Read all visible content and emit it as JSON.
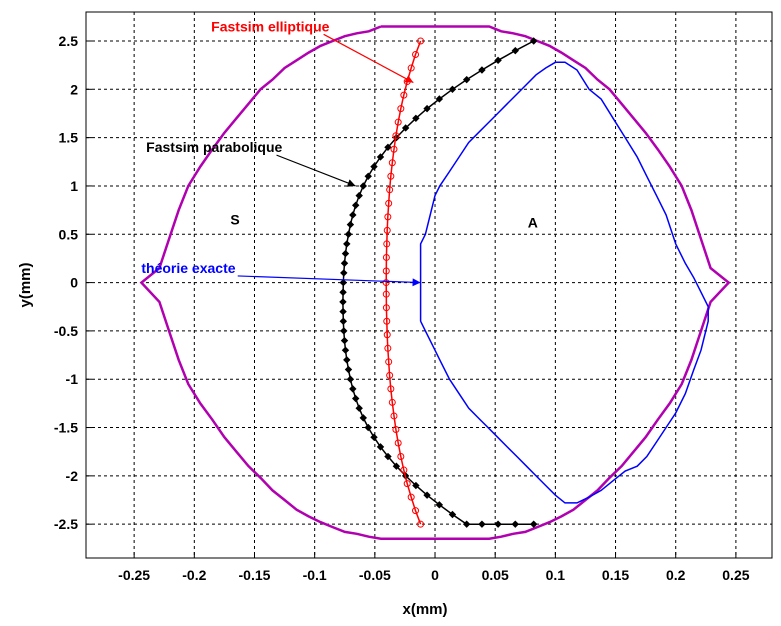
{
  "chart_data": {
    "type": "line",
    "xlabel": "x(mm)",
    "ylabel": "y(mm)",
    "xlim": [
      -0.29,
      0.28
    ],
    "ylim": [
      -2.85,
      2.8
    ],
    "xticks": [
      -0.25,
      -0.2,
      -0.15,
      -0.1,
      -0.05,
      0,
      0.05,
      0.1,
      0.15,
      0.2,
      0.25
    ],
    "xtick_labels": [
      "-0.25",
      "-0.2",
      "-0.15",
      "-0.1",
      "-0.05",
      "0",
      "0.05",
      "0.1",
      "0.15",
      "0.2",
      "0.25"
    ],
    "yticks": [
      -2.5,
      -2,
      -1.5,
      -1,
      -0.5,
      0,
      0.5,
      1,
      1.5,
      2,
      2.5
    ],
    "ytick_labels": [
      "-2.5",
      "-2",
      "-1.5",
      "-1",
      "-0.5",
      "0",
      "0.5",
      "1",
      "1.5",
      "2",
      "2.5"
    ],
    "grid": true,
    "annotations": [
      {
        "text": "Fastsim elliptique",
        "color": "#ff0000",
        "x": -0.186,
        "y": 2.6,
        "arrow_to": [
          -0.018,
          2.07
        ]
      },
      {
        "text": "Fastsim parabolique",
        "color": "#000000",
        "x": -0.24,
        "y": 1.35,
        "arrow_to": [
          -0.066,
          1.0
        ]
      },
      {
        "text": "théorie exacte",
        "color": "#0000ff",
        "x": -0.244,
        "y": 0.1,
        "arrow_to": [
          -0.012,
          0.0
        ]
      },
      {
        "text": "S",
        "color": "#000000",
        "x": -0.17,
        "y": 0.6
      },
      {
        "text": "A",
        "color": "#000000",
        "x": 0.077,
        "y": 0.57
      }
    ],
    "series": [
      {
        "color": "#b000b0",
        "x": [
          -0.045,
          0.045,
          0.055,
          0.065,
          0.075,
          0.085,
          0.095,
          0.105,
          0.115,
          0.125,
          0.135,
          0.145,
          0.155,
          0.165,
          0.175,
          0.185,
          0.195,
          0.205,
          0.213,
          0.221,
          0.229,
          0.244,
          0.244,
          0.229,
          0.221,
          0.213,
          0.205,
          0.195,
          0.185,
          0.175,
          0.165,
          0.155,
          0.145,
          0.135,
          0.125,
          0.115,
          0.105,
          0.095,
          0.085,
          0.075,
          0.065,
          0.055,
          0.045,
          -0.045,
          -0.055,
          -0.065,
          -0.075,
          -0.085,
          -0.095,
          -0.105,
          -0.115,
          -0.125,
          -0.135,
          -0.145,
          -0.155,
          -0.165,
          -0.175,
          -0.185,
          -0.195,
          -0.205,
          -0.213,
          -0.221,
          -0.229,
          -0.244,
          -0.244,
          -0.229,
          -0.221,
          -0.213,
          -0.205,
          -0.195,
          -0.185,
          -0.175,
          -0.165,
          -0.155,
          -0.145,
          -0.135,
          -0.125,
          -0.115,
          -0.105,
          -0.095,
          -0.085,
          -0.075,
          -0.065,
          -0.055,
          -0.045
        ],
        "y": [
          2.65,
          2.65,
          2.6,
          2.58,
          2.55,
          2.5,
          2.45,
          2.38,
          2.3,
          2.22,
          2.1,
          2.0,
          1.85,
          1.7,
          1.55,
          1.38,
          1.2,
          1.0,
          0.75,
          0.45,
          0.15,
          0.0,
          0.0,
          -0.2,
          -0.5,
          -0.8,
          -1.05,
          -1.25,
          -1.42,
          -1.6,
          -1.75,
          -1.9,
          -2.02,
          -2.15,
          -2.25,
          -2.35,
          -2.42,
          -2.48,
          -2.53,
          -2.58,
          -2.6,
          -2.63,
          -2.65,
          -2.65,
          -2.63,
          -2.6,
          -2.58,
          -2.53,
          -2.48,
          -2.42,
          -2.35,
          -2.25,
          -2.15,
          -2.02,
          -1.9,
          -1.75,
          -1.6,
          -1.42,
          -1.25,
          -1.05,
          -0.8,
          -0.5,
          -0.2,
          0.0,
          0.0,
          0.15,
          0.45,
          0.75,
          1.0,
          1.2,
          1.38,
          1.55,
          1.7,
          1.85,
          2.0,
          2.1,
          2.22,
          2.3,
          2.38,
          2.45,
          2.5,
          2.55,
          2.58,
          2.6,
          2.65
        ]
      },
      {
        "color": "#0000ff",
        "x": [
          -0.012,
          -0.012,
          -0.008,
          -0.004,
          0.0,
          0.004,
          0.012,
          0.02,
          0.028,
          0.036,
          0.044,
          0.052,
          0.06,
          0.068,
          0.076,
          0.084,
          0.092,
          0.1,
          0.108,
          0.118,
          0.128,
          0.138,
          0.148,
          0.158,
          0.168,
          0.176,
          0.184,
          0.192,
          0.2,
          0.208,
          0.215,
          0.221,
          0.227,
          0.227,
          0.221,
          0.215,
          0.208,
          0.2,
          0.192,
          0.184,
          0.176,
          0.168,
          0.158,
          0.148,
          0.138,
          0.128,
          0.118,
          0.108,
          0.1,
          0.092,
          0.084,
          0.076,
          0.068,
          0.06,
          0.052,
          0.044,
          0.036,
          0.028,
          0.02,
          0.012,
          0.004,
          0.0,
          -0.004,
          -0.008,
          -0.012,
          -0.012
        ],
        "y": [
          -0.4,
          0.4,
          0.5,
          0.7,
          0.9,
          1.0,
          1.15,
          1.3,
          1.45,
          1.55,
          1.65,
          1.75,
          1.85,
          1.95,
          2.05,
          2.15,
          2.22,
          2.28,
          2.28,
          2.2,
          2.0,
          1.9,
          1.7,
          1.5,
          1.3,
          1.1,
          0.9,
          0.7,
          0.4,
          0.2,
          0.05,
          -0.1,
          -0.25,
          -0.4,
          -0.7,
          -0.9,
          -1.15,
          -1.35,
          -1.5,
          -1.65,
          -1.8,
          -1.9,
          -1.95,
          -2.05,
          -2.15,
          -2.22,
          -2.28,
          -2.28,
          -2.2,
          -2.1,
          -2.0,
          -1.9,
          -1.8,
          -1.7,
          -1.6,
          -1.5,
          -1.4,
          -1.3,
          -1.15,
          -1.0,
          -0.8,
          -0.7,
          -0.6,
          -0.5,
          -0.4,
          -0.4
        ]
      },
      {
        "color": "#000000",
        "marker": "diamond",
        "x": [
          0.082,
          0.0667,
          0.0524,
          0.039,
          0.0263,
          0.0145,
          0.0036,
          -0.0066,
          -0.0159,
          -0.0244,
          -0.0321,
          -0.0391,
          -0.0453,
          -0.0507,
          -0.0555,
          -0.0596,
          -0.063,
          -0.0659,
          -0.0683,
          -0.0703,
          -0.0719,
          -0.0733,
          -0.0744,
          -0.0752,
          -0.0758,
          -0.0762,
          -0.0764,
          -0.0765,
          -0.0764,
          -0.0762,
          -0.0758,
          -0.0752,
          -0.0744,
          -0.0733,
          -0.0719,
          -0.0703,
          -0.0683,
          -0.0659,
          -0.063,
          -0.0596,
          -0.0555,
          -0.0507,
          -0.0453,
          -0.0391,
          -0.0321,
          -0.0244,
          -0.0159,
          -0.0066,
          0.0036,
          0.0145,
          0.0263,
          0.039,
          0.0524,
          0.0667,
          0.082
        ],
        "y": [
          2.5,
          2.4,
          2.3,
          2.2,
          2.1,
          2.0,
          1.9,
          1.8,
          1.7,
          1.6,
          1.5,
          1.4,
          1.3,
          1.2,
          1.1,
          1.0,
          0.9,
          0.8,
          0.7,
          0.6,
          0.5,
          0.4,
          0.3,
          0.2,
          0.1,
          0.0,
          -0.1,
          -0.2,
          -0.3,
          -0.4,
          -0.5,
          -0.6,
          -0.7,
          -0.8,
          -0.9,
          -1.0,
          -1.1,
          -1.2,
          -1.3,
          -1.4,
          -1.5,
          -1.6,
          -1.7,
          -1.8,
          -1.9,
          -2.0,
          -2.1,
          -2.2,
          -2.3,
          -2.4,
          -2.5,
          -2.5,
          -2.5,
          -2.5,
          -2.5
        ]
      },
      {
        "color": "#ff0000",
        "marker": "circle",
        "x": [
          -0.012,
          -0.0162,
          -0.0198,
          -0.0231,
          -0.0259,
          -0.0284,
          -0.0306,
          -0.0325,
          -0.0341,
          -0.0355,
          -0.0367,
          -0.0377,
          -0.0385,
          -0.0392,
          -0.0397,
          -0.0401,
          -0.0404,
          -0.0405,
          -0.0406,
          -0.0405,
          -0.0404,
          -0.0401,
          -0.0397,
          -0.0392,
          -0.0385,
          -0.0377,
          -0.0367,
          -0.0355,
          -0.0341,
          -0.0325,
          -0.0306,
          -0.0284,
          -0.0259,
          -0.0231,
          -0.0198,
          -0.0162,
          -0.012
        ],
        "y": [
          2.5,
          2.36,
          2.22,
          2.08,
          1.94,
          1.8,
          1.66,
          1.52,
          1.38,
          1.24,
          1.1,
          0.96,
          0.82,
          0.68,
          0.54,
          0.4,
          0.26,
          0.12,
          0.0,
          -0.12,
          -0.26,
          -0.4,
          -0.54,
          -0.68,
          -0.82,
          -0.96,
          -1.1,
          -1.24,
          -1.38,
          -1.52,
          -1.66,
          -1.8,
          -1.94,
          -2.08,
          -2.22,
          -2.36,
          -2.5
        ]
      }
    ]
  }
}
